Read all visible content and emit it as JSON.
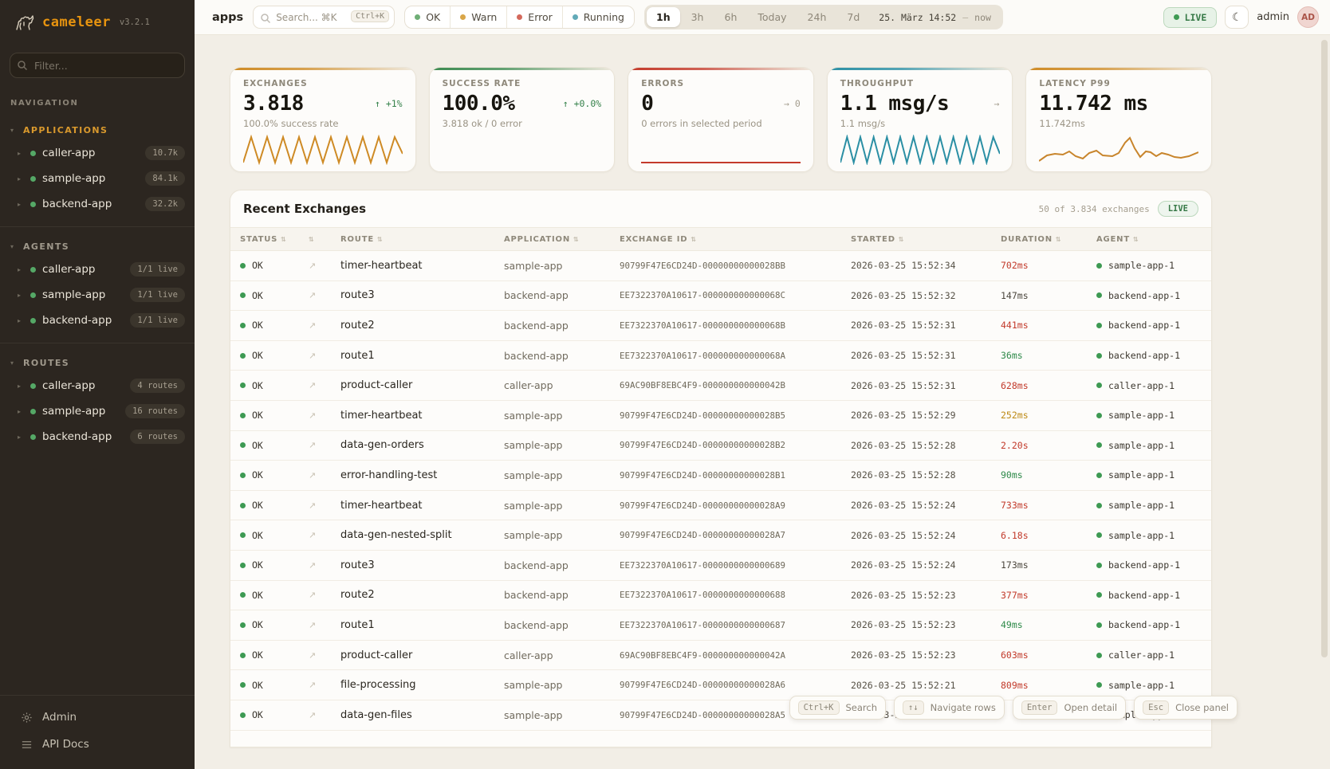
{
  "sidebar": {
    "brand": "cameleer",
    "version": "v3.2.1",
    "filter_placeholder": "Filter...",
    "nav_label": "NAVIGATION",
    "section_caret": "▾",
    "item_caret": "▸",
    "sections": [
      {
        "label": "APPLICATIONS",
        "active": true,
        "items": [
          {
            "name": "caller-app",
            "badge": "10.7k"
          },
          {
            "name": "sample-app",
            "badge": "84.1k"
          },
          {
            "name": "backend-app",
            "badge": "32.2k"
          }
        ]
      },
      {
        "label": "AGENTS",
        "active": false,
        "items": [
          {
            "name": "caller-app",
            "badge": "1/1 live"
          },
          {
            "name": "sample-app",
            "badge": "1/1 live"
          },
          {
            "name": "backend-app",
            "badge": "1/1 live"
          }
        ]
      },
      {
        "label": "ROUTES",
        "active": false,
        "items": [
          {
            "name": "caller-app",
            "badge": "4 routes"
          },
          {
            "name": "sample-app",
            "badge": "16 routes"
          },
          {
            "name": "backend-app",
            "badge": "6 routes"
          }
        ]
      }
    ],
    "footer": [
      {
        "label": "Admin",
        "icon": "gear-icon"
      },
      {
        "label": "API Docs",
        "icon": "list-icon"
      }
    ]
  },
  "topbar": {
    "breadcrumb": "apps",
    "search": {
      "placeholder": "Search... ⌘K",
      "kbd": "Ctrl+K"
    },
    "status_filters": [
      {
        "label": "OK",
        "color": "#6fae76"
      },
      {
        "label": "Warn",
        "color": "#d9a648"
      },
      {
        "label": "Error",
        "color": "#d4695c"
      },
      {
        "label": "Running",
        "color": "#62aab8"
      }
    ],
    "time_ranges": [
      "1h",
      "3h",
      "6h",
      "Today",
      "24h",
      "7d"
    ],
    "active_range": "1h",
    "date_label": "25. März 14:52",
    "date_separator": "—",
    "date_end": "now",
    "live_label": "LIVE",
    "moon_icon": "☾",
    "user_name": "admin",
    "avatar_initials": "AD"
  },
  "cards": [
    {
      "title": "EXCHANGES",
      "value": "3.818",
      "delta": "↑ +1%",
      "delta_color": "green",
      "subtitle": "100.0% success rate",
      "accent": "#ce8a24",
      "spark": "zigzag",
      "spark_color": "#ce8a24",
      "periods": 10
    },
    {
      "title": "SUCCESS RATE",
      "value": "100.0%",
      "delta": "↑ +0.0%",
      "delta_color": "green",
      "subtitle": "3.818 ok / 0 error",
      "accent": "#3c8a50",
      "spark": "none",
      "spark_color": "#3c8a50",
      "periods": 0
    },
    {
      "title": "ERRORS",
      "value": "0",
      "delta": "→ 0",
      "delta_color": "gray",
      "subtitle": "0 errors in selected period",
      "accent": "#c43a2b",
      "spark": "flat",
      "spark_color": "#c43a2b",
      "periods": 0
    },
    {
      "title": "THROUGHPUT",
      "value": "1.1 msg/s",
      "delta": "→",
      "delta_color": "gray",
      "subtitle": "1.1 msg/s",
      "accent": "#2b8fa4",
      "spark": "zigzag",
      "spark_color": "#2b8fa4",
      "periods": 12
    },
    {
      "title": "LATENCY P99",
      "value": "11.742 ms",
      "delta": "",
      "delta_color": "gray",
      "subtitle": "11.742ms",
      "accent": "#ce8a24",
      "spark": "line",
      "spark_color": "#c8852c",
      "periods": 0
    }
  ],
  "table": {
    "title": "Recent Exchanges",
    "summary": "50 of 3.834 exchanges",
    "live_badge": "LIVE",
    "sort_icon": "⇅",
    "row_action_icon": "↗",
    "columns": [
      "STATUS",
      "",
      "ROUTE",
      "APPLICATION",
      "EXCHANGE ID",
      "STARTED",
      "DURATION",
      "AGENT"
    ],
    "rows": [
      {
        "status": "OK",
        "route": "timer-heartbeat",
        "application": "sample-app",
        "exchange_id": "90799F47E6CD24D-00000000000028BB",
        "started": "2026-03-25 15:52:34",
        "duration": "702ms",
        "duration_color": "red",
        "agent": "sample-app-1"
      },
      {
        "status": "OK",
        "route": "route3",
        "application": "backend-app",
        "exchange_id": "EE7322370A10617-000000000000068C",
        "started": "2026-03-25 15:52:32",
        "duration": "147ms",
        "duration_color": "neutral",
        "agent": "backend-app-1"
      },
      {
        "status": "OK",
        "route": "route2",
        "application": "backend-app",
        "exchange_id": "EE7322370A10617-000000000000068B",
        "started": "2026-03-25 15:52:31",
        "duration": "441ms",
        "duration_color": "red",
        "agent": "backend-app-1"
      },
      {
        "status": "OK",
        "route": "route1",
        "application": "backend-app",
        "exchange_id": "EE7322370A10617-000000000000068A",
        "started": "2026-03-25 15:52:31",
        "duration": "36ms",
        "duration_color": "green",
        "agent": "backend-app-1"
      },
      {
        "status": "OK",
        "route": "product-caller",
        "application": "caller-app",
        "exchange_id": "69AC90BF8EBC4F9-000000000000042B",
        "started": "2026-03-25 15:52:31",
        "duration": "628ms",
        "duration_color": "red",
        "agent": "caller-app-1"
      },
      {
        "status": "OK",
        "route": "timer-heartbeat",
        "application": "sample-app",
        "exchange_id": "90799F47E6CD24D-00000000000028B5",
        "started": "2026-03-25 15:52:29",
        "duration": "252ms",
        "duration_color": "amber",
        "agent": "sample-app-1"
      },
      {
        "status": "OK",
        "route": "data-gen-orders",
        "application": "sample-app",
        "exchange_id": "90799F47E6CD24D-00000000000028B2",
        "started": "2026-03-25 15:52:28",
        "duration": "2.20s",
        "duration_color": "red",
        "agent": "sample-app-1"
      },
      {
        "status": "OK",
        "route": "error-handling-test",
        "application": "sample-app",
        "exchange_id": "90799F47E6CD24D-00000000000028B1",
        "started": "2026-03-25 15:52:28",
        "duration": "90ms",
        "duration_color": "green",
        "agent": "sample-app-1"
      },
      {
        "status": "OK",
        "route": "timer-heartbeat",
        "application": "sample-app",
        "exchange_id": "90799F47E6CD24D-00000000000028A9",
        "started": "2026-03-25 15:52:24",
        "duration": "733ms",
        "duration_color": "red",
        "agent": "sample-app-1"
      },
      {
        "status": "OK",
        "route": "data-gen-nested-split",
        "application": "sample-app",
        "exchange_id": "90799F47E6CD24D-00000000000028A7",
        "started": "2026-03-25 15:52:24",
        "duration": "6.18s",
        "duration_color": "red",
        "agent": "sample-app-1"
      },
      {
        "status": "OK",
        "route": "route3",
        "application": "backend-app",
        "exchange_id": "EE7322370A10617-0000000000000689",
        "started": "2026-03-25 15:52:24",
        "duration": "173ms",
        "duration_color": "neutral",
        "agent": "backend-app-1"
      },
      {
        "status": "OK",
        "route": "route2",
        "application": "backend-app",
        "exchange_id": "EE7322370A10617-0000000000000688",
        "started": "2026-03-25 15:52:23",
        "duration": "377ms",
        "duration_color": "red",
        "agent": "backend-app-1"
      },
      {
        "status": "OK",
        "route": "route1",
        "application": "backend-app",
        "exchange_id": "EE7322370A10617-0000000000000687",
        "started": "2026-03-25 15:52:23",
        "duration": "49ms",
        "duration_color": "green",
        "agent": "backend-app-1"
      },
      {
        "status": "OK",
        "route": "product-caller",
        "application": "caller-app",
        "exchange_id": "69AC90BF8EBC4F9-000000000000042A",
        "started": "2026-03-25 15:52:23",
        "duration": "603ms",
        "duration_color": "red",
        "agent": "caller-app-1"
      },
      {
        "status": "OK",
        "route": "file-processing",
        "application": "sample-app",
        "exchange_id": "90799F47E6CD24D-00000000000028A6",
        "started": "2026-03-25 15:52:21",
        "duration": "809ms",
        "duration_color": "red",
        "agent": "sample-app-1"
      },
      {
        "status": "OK",
        "route": "data-gen-files",
        "application": "sample-app",
        "exchange_id": "90799F47E6CD24D-00000000000028A5",
        "started": "2026-03-25 15:52:21",
        "duration": "",
        "duration_color": "neutral",
        "agent": "sample-app-1"
      }
    ]
  },
  "shortcuts": [
    {
      "kbd": "Ctrl+K",
      "label": "Search"
    },
    {
      "kbd": "↑↓",
      "label": "Navigate rows"
    },
    {
      "kbd": "Enter",
      "label": "Open detail"
    },
    {
      "kbd": "Esc",
      "label": "Close panel"
    }
  ]
}
